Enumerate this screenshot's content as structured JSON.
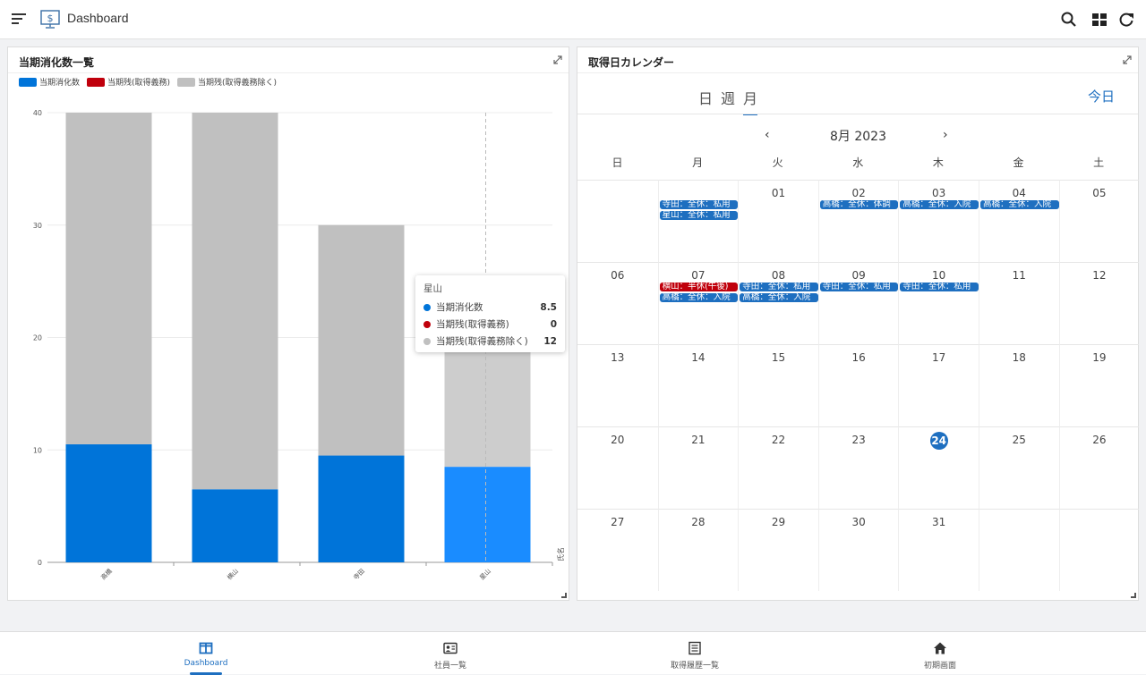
{
  "header": {
    "title": "Dashboard"
  },
  "colors": {
    "consumed": "#0074d9",
    "mandatory_remaining": "#c0000c",
    "other_remaining": "#c0c0c0",
    "highlight": "#1a8cff",
    "accent": "#1e6fc0"
  },
  "chart_panel": {
    "title": "当期消化数一覧",
    "legend": [
      "当期消化数",
      "当期残(取得義務)",
      "当期残(取得義務除く)"
    ]
  },
  "chart_data": {
    "type": "bar",
    "stacked": true,
    "title": "当期消化数一覧",
    "categories": [
      "高橋",
      "横山",
      "寺田",
      "星山"
    ],
    "series": [
      {
        "name": "当期消化数",
        "values": [
          10.5,
          6.5,
          9.5,
          8.5
        ]
      },
      {
        "name": "当期残(取得義務)",
        "values": [
          0,
          0,
          0,
          0
        ]
      },
      {
        "name": "当期残(取得義務除く)",
        "values": [
          29.5,
          33.5,
          20.5,
          12
        ]
      }
    ],
    "xlabel": "氏名",
    "ylabel": "",
    "ylim": [
      0,
      40
    ],
    "yticks": [
      "0",
      "10",
      "20",
      "30",
      "40"
    ],
    "legend_position": "top-left",
    "grid": true
  },
  "tooltip": {
    "title": "星山",
    "rows": [
      {
        "label": "当期消化数",
        "value": "8.5"
      },
      {
        "label": "当期残(取得義務)",
        "value": "0"
      },
      {
        "label": "当期残(取得義務除く)",
        "value": "12"
      }
    ]
  },
  "calendar_panel": {
    "title": "取得日カレンダー",
    "tabs": [
      "日",
      "週",
      "月"
    ],
    "active_tab": "月",
    "today_button": "今日",
    "prev": "‹",
    "next": "›",
    "month_label": "8月 2023",
    "weekdays": [
      "日",
      "月",
      "火",
      "水",
      "木",
      "金",
      "土"
    ],
    "weeks": [
      [
        "",
        "",
        "01",
        "02",
        "03",
        "04",
        "05"
      ],
      [
        "06",
        "07",
        "08",
        "09",
        "10",
        "11",
        "12"
      ],
      [
        "13",
        "14",
        "15",
        "16",
        "17",
        "18",
        "19"
      ],
      [
        "20",
        "21",
        "22",
        "23",
        "24",
        "25",
        "26"
      ],
      [
        "27",
        "28",
        "29",
        "30",
        "31",
        "",
        ""
      ]
    ],
    "today": "24",
    "events": [
      {
        "week": 0,
        "day": 1,
        "slot": 0,
        "text": "寺田：全休：私用",
        "color": "blue"
      },
      {
        "week": 0,
        "day": 1,
        "slot": 1,
        "text": "星山：全休：私用",
        "color": "blue"
      },
      {
        "week": 0,
        "day": 3,
        "slot": 0,
        "text": "高橋：全休：体調",
        "color": "blue"
      },
      {
        "week": 0,
        "day": 4,
        "slot": 0,
        "text": "高橋：全休：入院",
        "color": "blue"
      },
      {
        "week": 0,
        "day": 5,
        "slot": 0,
        "text": "高橋：全休：入院",
        "color": "blue"
      },
      {
        "week": 1,
        "day": 1,
        "slot": 0,
        "text": "横山：半休(午後)",
        "color": "red"
      },
      {
        "week": 1,
        "day": 1,
        "slot": 1,
        "text": "高橋：全休：入院",
        "color": "blue"
      },
      {
        "week": 1,
        "day": 2,
        "slot": 0,
        "text": "寺田：全休：私用",
        "color": "blue"
      },
      {
        "week": 1,
        "day": 2,
        "slot": 1,
        "text": "高橋：全休：入院",
        "color": "blue"
      },
      {
        "week": 1,
        "day": 3,
        "slot": 0,
        "text": "寺田：全休：私用",
        "color": "blue"
      },
      {
        "week": 1,
        "day": 4,
        "slot": 0,
        "text": "寺田：全休：私用",
        "color": "blue"
      }
    ]
  },
  "bottom_nav": [
    {
      "label": "Dashboard",
      "icon": "dashboard-icon",
      "active": true
    },
    {
      "label": "社員一覧",
      "icon": "employee-card-icon",
      "active": false
    },
    {
      "label": "取得履歴一覧",
      "icon": "history-list-icon",
      "active": false
    },
    {
      "label": "初期画面",
      "icon": "home-icon",
      "active": false
    }
  ]
}
